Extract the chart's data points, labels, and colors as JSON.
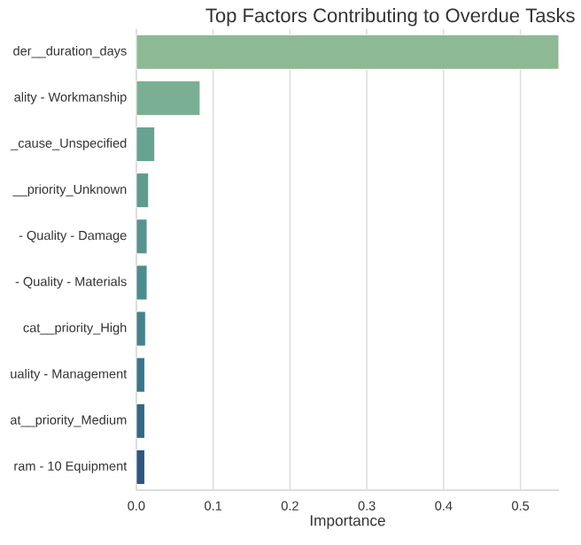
{
  "chart_data": {
    "type": "bar",
    "orientation": "horizontal",
    "title": "Top Factors Contributing to Overdue Tasks",
    "xlabel": "Importance",
    "categories": [
      "der__duration_days",
      "ality - Workmanship",
      "_cause_Unspecified",
      "__priority_Unknown",
      "- Quality - Damage",
      "- Quality - Materials",
      "cat__priority_High",
      "uality - Management",
      "at__priority_Medium",
      "ram - 10 Equipment"
    ],
    "values": [
      0.55,
      0.083,
      0.024,
      0.016,
      0.014,
      0.014,
      0.012,
      0.011,
      0.011,
      0.011
    ],
    "colors": [
      "#8dba94",
      "#7aaf93",
      "#68a392",
      "#5e9b91",
      "#56948f",
      "#4c8c8e",
      "#44838c",
      "#3b768a",
      "#336987",
      "#2d5682"
    ],
    "xlim": [
      0,
      0.55
    ],
    "xticks": [
      {
        "value": 0,
        "label": "0.0"
      },
      0.1,
      0.2,
      0.3,
      0.4,
      0.5
    ],
    "grid": "x"
  }
}
